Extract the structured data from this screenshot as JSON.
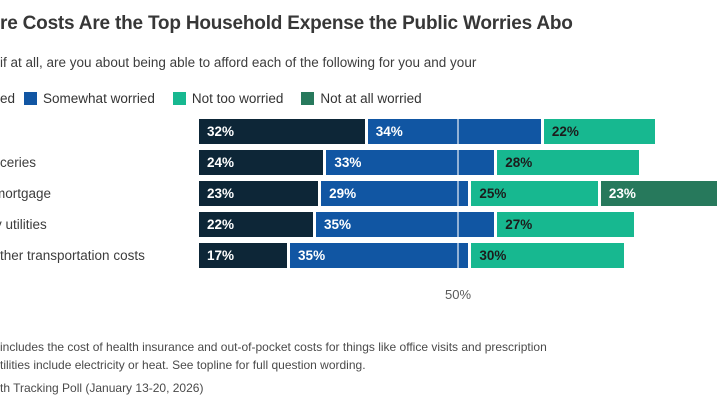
{
  "title": "re Costs Are the Top Household Expense the Public Worries Abo",
  "subtitle": "if at all, are you about being able to afford each of the following for you and your",
  "legend": {
    "cropped_first_item_fragment": "ed",
    "items": [
      {
        "series": "somewhat_worried",
        "label": "Somewhat worried"
      },
      {
        "series": "not_too_worried",
        "label": "Not too worried"
      },
      {
        "series": "not_at_all_worried",
        "label": "Not at all worried"
      }
    ]
  },
  "colors": {
    "very_worried": "#0d2637",
    "somewhat_worried": "#1156a3",
    "not_too_worried": "#17b890",
    "not_at_all_worried": "#27795c",
    "label_on_dark": "#ffffff",
    "label_on_teal": "#1c1c1c"
  },
  "chart_data": {
    "type": "bar",
    "orientation": "horizontal",
    "stacked": true,
    "value_unit": "percent",
    "x_axis": {
      "visible_tick": "50%",
      "tick_value": 50
    },
    "rows": [
      {
        "label_fragment": "",
        "segments": [
          {
            "series": "very_worried",
            "value": 32,
            "label": "32%"
          },
          {
            "series": "somewhat_worried",
            "value": 34,
            "label": "34%"
          },
          {
            "series": "not_too_worried",
            "value": 22,
            "label": "22%"
          }
        ]
      },
      {
        "label_fragment": "ceries",
        "segments": [
          {
            "series": "very_worried",
            "value": 24,
            "label": "24%"
          },
          {
            "series": "somewhat_worried",
            "value": 33,
            "label": "33%"
          },
          {
            "series": "not_too_worried",
            "value": 28,
            "label": "28%"
          }
        ]
      },
      {
        "label_fragment": "mortgage",
        "segments": [
          {
            "series": "very_worried",
            "value": 23,
            "label": "23%"
          },
          {
            "series": "somewhat_worried",
            "value": 29,
            "label": "29%"
          },
          {
            "series": "not_too_worried",
            "value": 25,
            "label": "25%"
          },
          {
            "series": "not_at_all_worried",
            "value": 23,
            "label": "23%"
          }
        ]
      },
      {
        "label_fragment": "y utilities",
        "segments": [
          {
            "series": "very_worried",
            "value": 22,
            "label": "22%"
          },
          {
            "series": "somewhat_worried",
            "value": 35,
            "label": "35%"
          },
          {
            "series": "not_too_worried",
            "value": 27,
            "label": "27%"
          }
        ]
      },
      {
        "label_fragment": "ther transportation costs",
        "segments": [
          {
            "series": "very_worried",
            "value": 17,
            "label": "17%"
          },
          {
            "series": "somewhat_worried",
            "value": 35,
            "label": "35%"
          },
          {
            "series": "not_too_worried",
            "value": 30,
            "label": "30%"
          }
        ]
      }
    ]
  },
  "footnotes": [
    "includes the cost of health insurance and out-of-pocket costs for things like office visits and prescription",
    "tilities include electricity or heat. See topline for full question wording."
  ],
  "source": "th Tracking Poll (January 13-20, 2026)"
}
